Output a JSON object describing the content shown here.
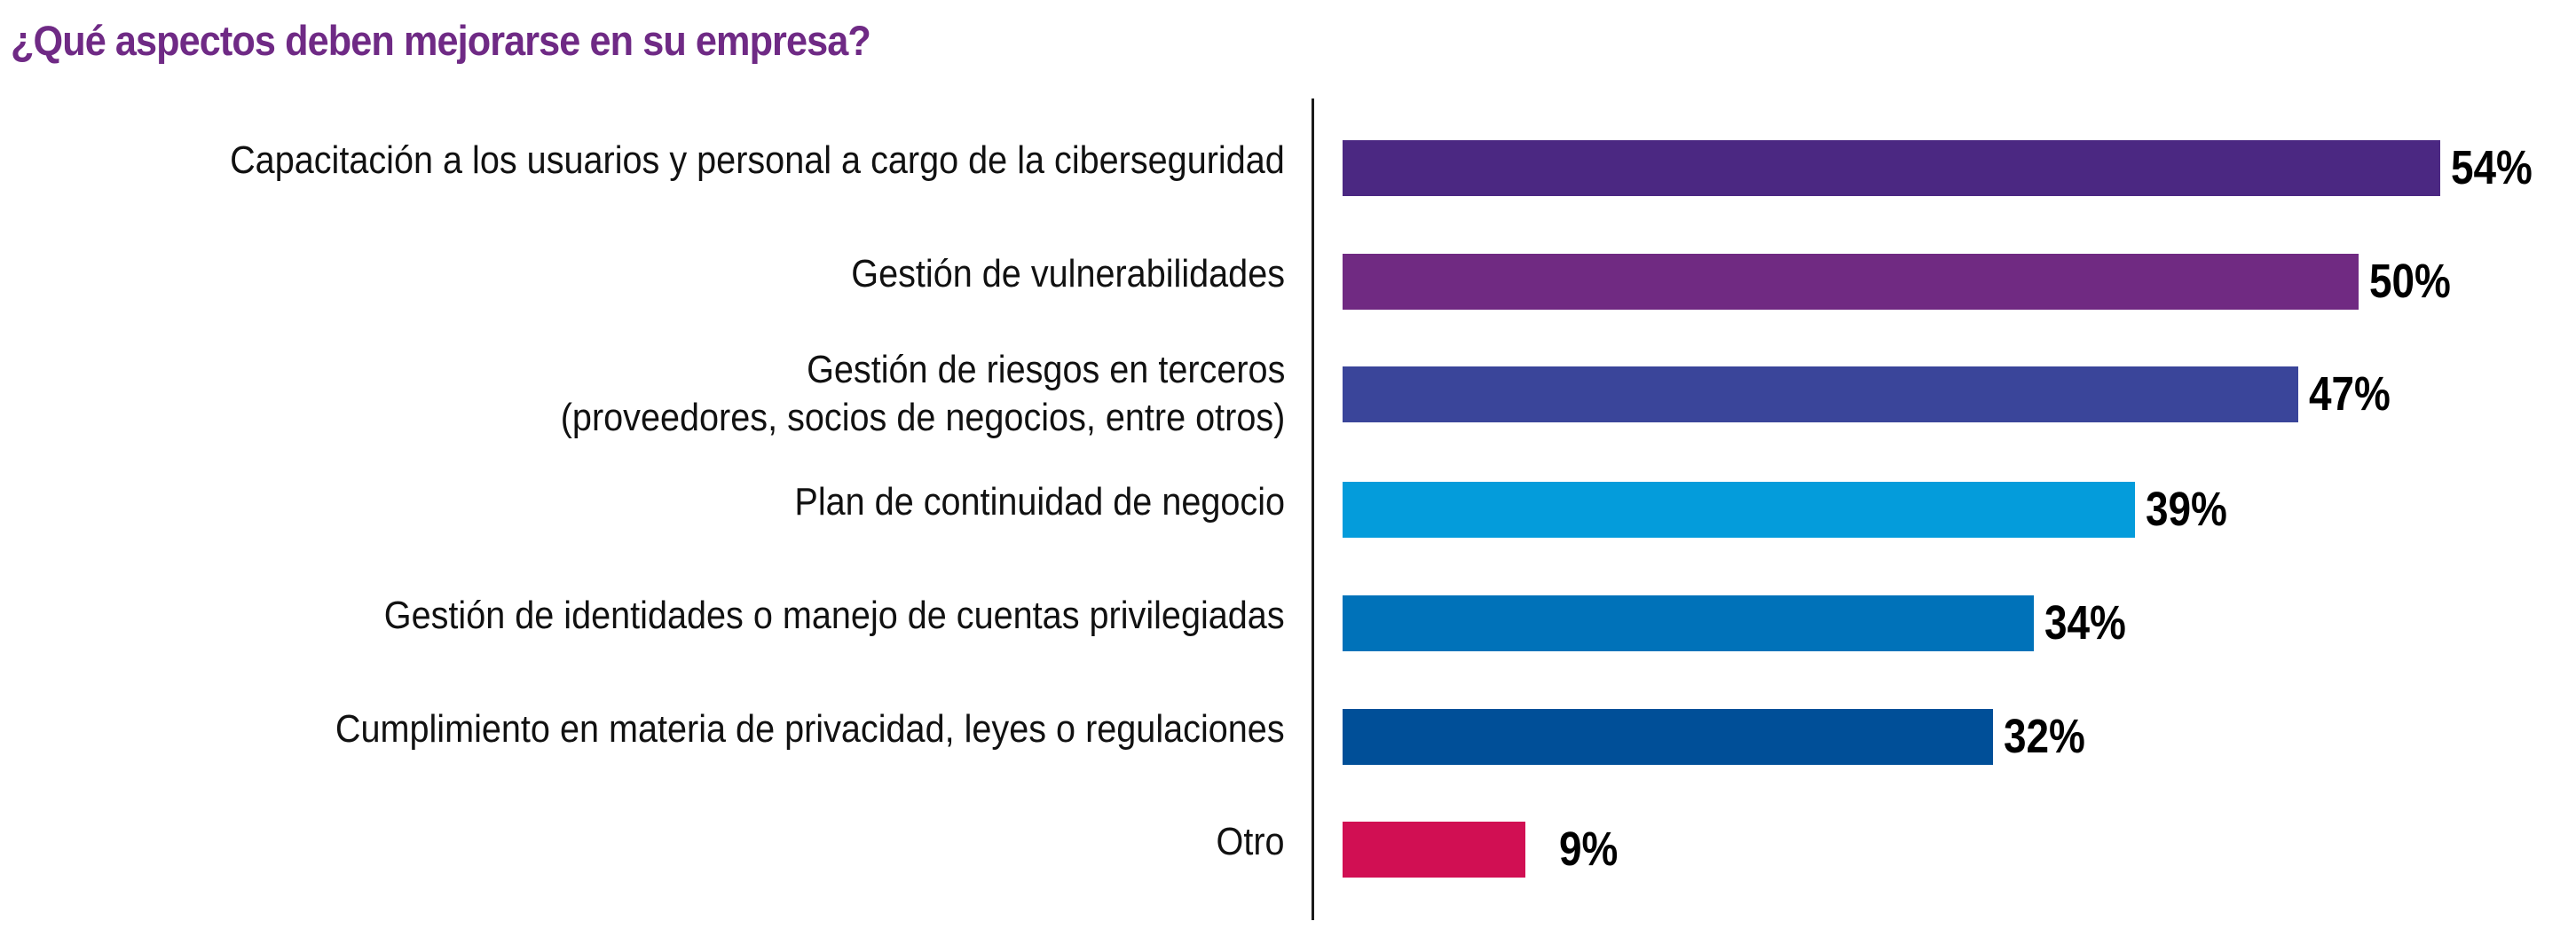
{
  "title": "¿Qué aspectos deben mejorarse en su empresa?",
  "chart_data": {
    "type": "bar",
    "orientation": "horizontal",
    "title": "¿Qué aspectos deben mejorarse en su empresa?",
    "xlabel": "",
    "ylabel": "",
    "xlim": [
      0,
      54
    ],
    "grid": false,
    "categories": [
      [
        "Capacitación a los usuarios y personal a cargo de la ciberseguridad"
      ],
      [
        "Gestión de vulnerabilidades"
      ],
      [
        "Gestión de riesgos en terceros",
        "(proveedores, socios de negocios, entre otros)"
      ],
      [
        "Plan de continuidad de negocio"
      ],
      [
        "Gestión de identidades o manejo de cuentas privilegiadas"
      ],
      [
        "Cumplimiento en materia de privacidad, leyes o regulaciones"
      ],
      [
        "Otro"
      ]
    ],
    "values": [
      54,
      50,
      47,
      39,
      34,
      32,
      9
    ],
    "value_labels": [
      "54%",
      "50%",
      "47%",
      "39%",
      "34%",
      "32%",
      "9%"
    ],
    "colors": [
      "#4b2882",
      "#702a82",
      "#3a459a",
      "#049cdb",
      "#0072b9",
      "#004f98",
      "#d10f53"
    ]
  },
  "colors": {
    "title": "#6f2a85",
    "axis": "#1a1a1a"
  }
}
